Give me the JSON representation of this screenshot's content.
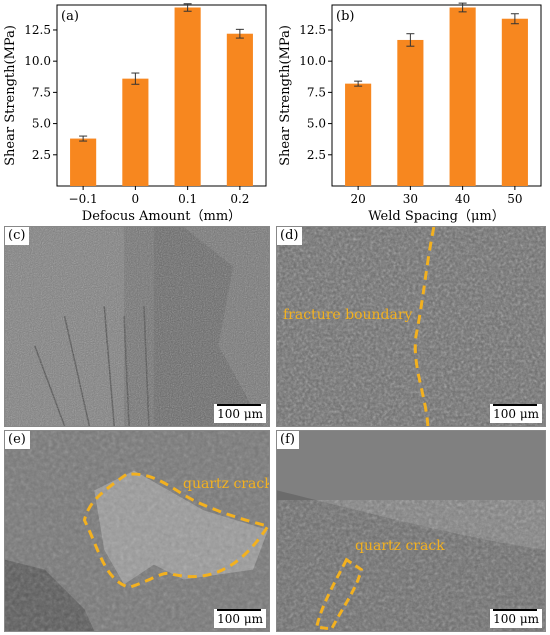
{
  "charts": [
    {
      "panel_label": "(a)",
      "chart_data": {
        "type": "bar",
        "categories": [
          "−0.1",
          "0",
          "0.1",
          "0.2"
        ],
        "values": [
          3.8,
          8.6,
          14.3,
          12.2
        ],
        "errors": [
          0.2,
          0.45,
          0.3,
          0.35
        ],
        "xlabel": "Defocus Amount（mm）",
        "ylabel": "Shear Strength(MPa)",
        "ylim": [
          0,
          14.5
        ],
        "yticks": [
          "2.5",
          "5.0",
          "7.5",
          "10.0",
          "12.5"
        ],
        "ytick_values": [
          2.5,
          5.0,
          7.5,
          10.0,
          12.5
        ],
        "bar_color": "#f7871f"
      }
    },
    {
      "panel_label": "(b)",
      "chart_data": {
        "type": "bar",
        "categories": [
          "20",
          "30",
          "40",
          "50"
        ],
        "values": [
          8.2,
          11.7,
          14.3,
          13.4
        ],
        "errors": [
          0.2,
          0.5,
          0.35,
          0.4
        ],
        "xlabel": "Weld Spacing（μm）",
        "ylabel": "Shear Strength(MPa)",
        "ylim": [
          0,
          14.5
        ],
        "yticks": [
          "2.5",
          "5.0",
          "7.5",
          "10.0",
          "12.5"
        ],
        "ytick_values": [
          2.5,
          5.0,
          7.5,
          10.0,
          12.5
        ],
        "bar_color": "#f7871f"
      }
    }
  ],
  "micrographs": {
    "c": {
      "label": "(c)",
      "scale": "100 μm"
    },
    "d": {
      "label": "(d)",
      "scale": "100 μm",
      "annotation": "fracture boundary"
    },
    "e": {
      "label": "(e)",
      "scale": "100 μm",
      "annotation": "quartz crack"
    },
    "f": {
      "label": "(f)",
      "scale": "100 μm",
      "annotation": "quartz crack"
    }
  },
  "colors": {
    "annotation": "#f3b11f",
    "dashed_outline": "#f3b11f",
    "sem_base": "#6e6e6e"
  }
}
